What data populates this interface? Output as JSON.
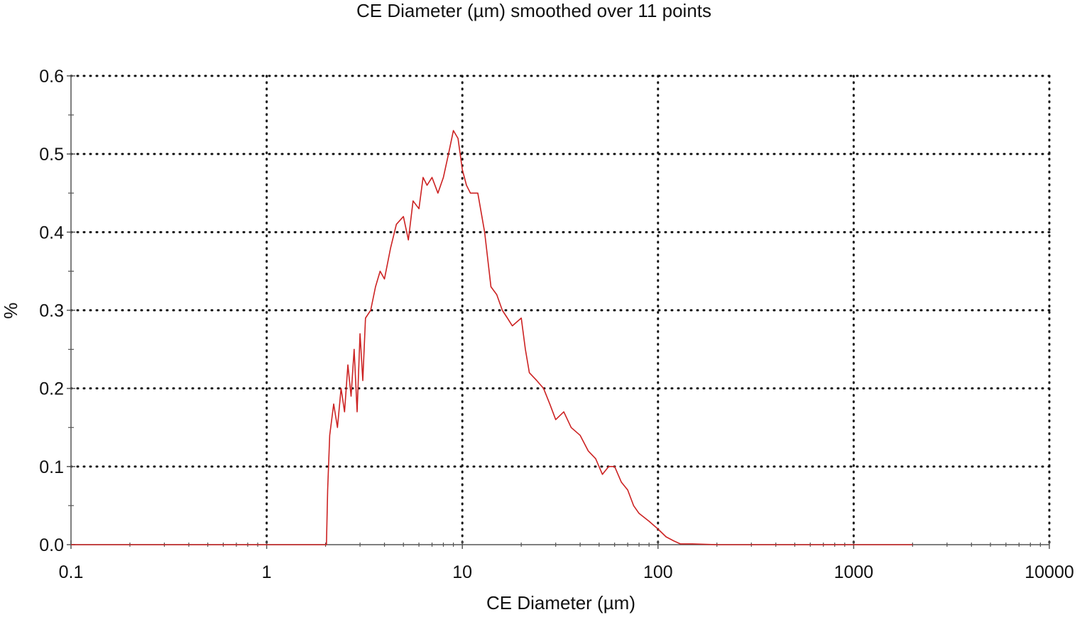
{
  "chart_data": {
    "type": "line",
    "title": "CE Diameter (µm) smoothed over 11 points",
    "xlabel": "CE Diameter (µm)",
    "ylabel": "%",
    "xscale": "log",
    "xlim": [
      0.1,
      10000
    ],
    "ylim": [
      0,
      0.6
    ],
    "x_ticks": [
      0.1,
      1,
      10,
      100,
      1000,
      10000
    ],
    "x_tick_labels": [
      "0.1",
      "1",
      "10",
      "100",
      "1000",
      "10000"
    ],
    "y_ticks": [
      0,
      0.1,
      0.2,
      0.3,
      0.4,
      0.5,
      0.6
    ],
    "y_tick_labels": [
      "0.0",
      "0.1",
      "0.2",
      "0.3",
      "0.4",
      "0.5",
      "0.6"
    ],
    "grid": true,
    "grid_style": "dotted",
    "colors": {
      "series": "#cc2222",
      "grid": "#111111",
      "axis": "#555555"
    },
    "series": [
      {
        "x": [
          0.1,
          0.5,
          1.0,
          1.5,
          2.0,
          2.02,
          2.05,
          2.1,
          2.2,
          2.3,
          2.4,
          2.5,
          2.6,
          2.7,
          2.8,
          2.9,
          3.0,
          3.1,
          3.2,
          3.4,
          3.6,
          3.8,
          4.0,
          4.3,
          4.6,
          5.0,
          5.3,
          5.6,
          6.0,
          6.3,
          6.6,
          7.0,
          7.5,
          8.0,
          8.5,
          9.0,
          9.5,
          10.0,
          10.5,
          11.0,
          12.0,
          13.0,
          14.0,
          15.0,
          16.0,
          17.0,
          18.0,
          20.0,
          21.0,
          22.0,
          24.0,
          26.0,
          28.0,
          30.0,
          33.0,
          36.0,
          40.0,
          44.0,
          48.0,
          52.0,
          56.0,
          60.0,
          65.0,
          70.0,
          75.0,
          80.0,
          90.0,
          100.0,
          110.0,
          120.0,
          130.0,
          150.0,
          200.0,
          300.0,
          500.0,
          1000.0,
          2000.0
        ],
        "values": [
          0.0,
          0.0,
          0.0,
          0.0,
          0.0,
          0.0,
          0.07,
          0.14,
          0.18,
          0.15,
          0.2,
          0.17,
          0.23,
          0.19,
          0.25,
          0.17,
          0.27,
          0.21,
          0.29,
          0.3,
          0.33,
          0.35,
          0.34,
          0.38,
          0.41,
          0.42,
          0.39,
          0.44,
          0.43,
          0.47,
          0.46,
          0.47,
          0.45,
          0.47,
          0.5,
          0.53,
          0.52,
          0.48,
          0.46,
          0.45,
          0.45,
          0.4,
          0.33,
          0.32,
          0.3,
          0.29,
          0.28,
          0.29,
          0.25,
          0.22,
          0.21,
          0.2,
          0.18,
          0.16,
          0.17,
          0.15,
          0.14,
          0.12,
          0.11,
          0.09,
          0.1,
          0.1,
          0.08,
          0.07,
          0.05,
          0.04,
          0.03,
          0.02,
          0.01,
          0.005,
          0.001,
          0.001,
          0.0,
          0.0,
          0.0,
          0.0,
          0.0
        ]
      }
    ]
  }
}
